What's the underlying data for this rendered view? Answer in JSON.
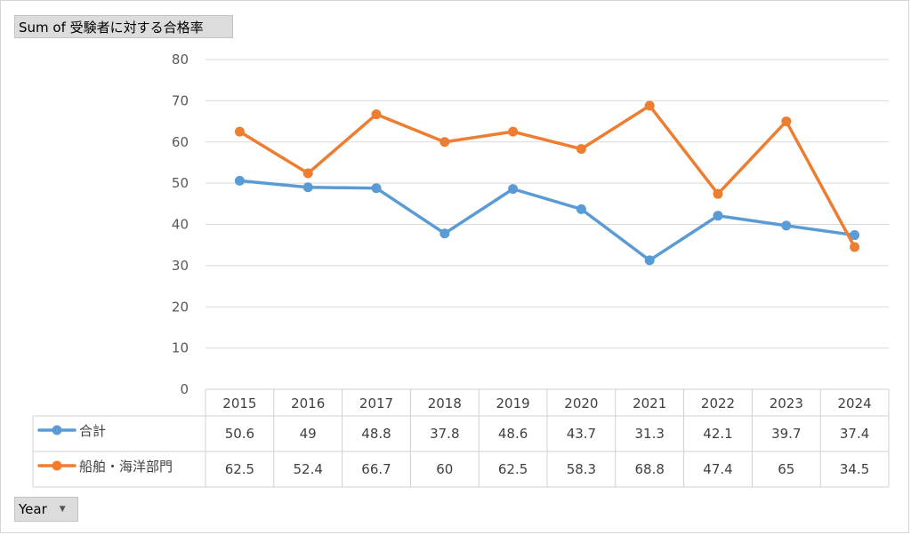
{
  "pivot": {
    "title_field": "Sum of 受験者に対する合格率",
    "axis_field": "Year",
    "dropdown_icon": "dropdown-arrow-icon"
  },
  "chart_data": {
    "type": "line",
    "title": "",
    "xlabel": "",
    "ylabel": "",
    "ylim": [
      0,
      80
    ],
    "yticks": [
      0,
      10,
      20,
      30,
      40,
      50,
      60,
      70,
      80
    ],
    "grid": true,
    "legend_placement": "data-table-left",
    "categories": [
      "2015",
      "2016",
      "2017",
      "2018",
      "2019",
      "2020",
      "2021",
      "2022",
      "2023",
      "2024"
    ],
    "series": [
      {
        "name": "合計",
        "color": "#5b9bd5",
        "values": [
          50.6,
          49,
          48.8,
          37.8,
          48.6,
          43.7,
          31.3,
          42.1,
          39.7,
          37.4
        ]
      },
      {
        "name": "船舶・海洋部門",
        "color": "#ed7d31",
        "values": [
          62.5,
          52.4,
          66.7,
          60,
          62.5,
          58.3,
          68.8,
          47.4,
          65,
          34.5
        ]
      }
    ]
  }
}
